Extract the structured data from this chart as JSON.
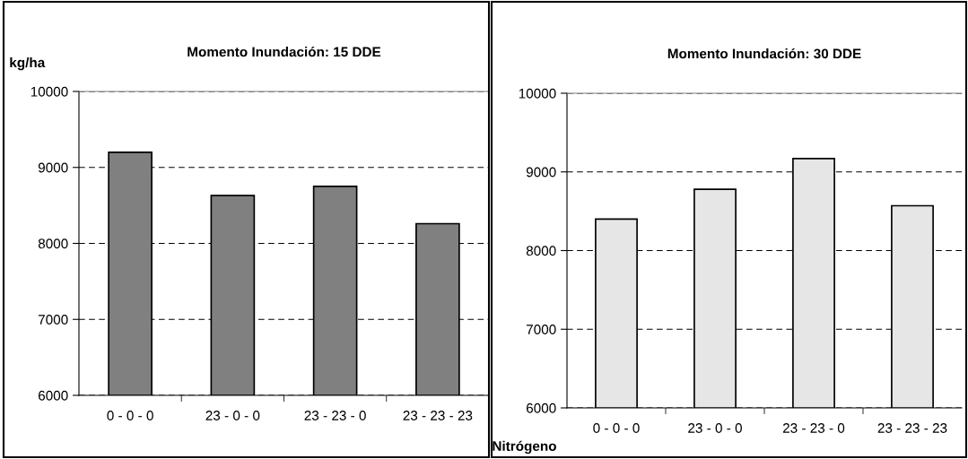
{
  "chart_data": [
    {
      "type": "bar",
      "title": "Momento Inundación: 15 DDE",
      "ylabel": "kg/ha",
      "categories": [
        "0 - 0 - 0",
        "23 - 0 - 0",
        "23 - 23 - 0",
        "23 - 23 - 23"
      ],
      "values": [
        9200,
        8630,
        8750,
        8260
      ],
      "color": "#808080",
      "ylim": [
        6000,
        10000
      ],
      "yticks": [
        6000,
        7000,
        8000,
        9000,
        10000
      ],
      "grid": "y"
    },
    {
      "type": "bar",
      "title": "Momento Inundación: 30 DDE",
      "xlabel": "Nitrógeno",
      "categories": [
        "0 - 0 - 0",
        "23 - 0 - 0",
        "23 - 23 - 0",
        "23 - 23 - 23"
      ],
      "values": [
        8400,
        8780,
        9170,
        8570
      ],
      "color": "#e6e6e6",
      "ylim": [
        6000,
        10000
      ],
      "yticks": [
        6000,
        7000,
        8000,
        9000,
        10000
      ],
      "grid": "y"
    }
  ]
}
